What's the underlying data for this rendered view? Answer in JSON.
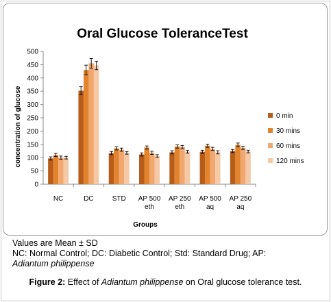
{
  "chart_data": {
    "type": "bar",
    "title": "Oral Glucose ToleranceTest",
    "xlabel": "Groups",
    "ylabel": "concentration of glucose",
    "ylim": [
      0,
      500
    ],
    "yticks": [
      "0",
      "50",
      "100",
      "150",
      "200",
      "250",
      "300",
      "350",
      "400",
      "450",
      "500"
    ],
    "categories": [
      [
        "NC"
      ],
      [
        "DC"
      ],
      [
        "STD"
      ],
      [
        "AP 500",
        "eth"
      ],
      [
        "AP 250",
        "eth"
      ],
      [
        "AP 500",
        "aq"
      ],
      [
        "AP 250",
        "aq"
      ]
    ],
    "series": [
      {
        "name": "0  min",
        "color": "#b85c1a",
        "values": [
          97,
          352,
          117,
          112,
          120,
          122,
          125
        ],
        "errors": [
          6,
          15,
          6,
          6,
          6,
          6,
          6
        ]
      },
      {
        "name": "30 mins",
        "color": "#e2842e",
        "values": [
          110,
          430,
          135,
          138,
          142,
          145,
          148
        ],
        "errors": [
          6,
          18,
          6,
          6,
          6,
          6,
          7
        ]
      },
      {
        "name": "60 mins",
        "color": "#f0a870",
        "values": [
          100,
          455,
          130,
          118,
          140,
          133,
          137
        ],
        "errors": [
          6,
          18,
          6,
          6,
          6,
          6,
          6
        ]
      },
      {
        "name": "120 mins",
        "color": "#f5c9a6",
        "values": [
          100,
          447,
          118,
          106,
          122,
          120,
          123
        ],
        "errors": [
          5,
          16,
          5,
          5,
          5,
          6,
          5
        ]
      }
    ],
    "legend": "right",
    "grid": false
  },
  "notes": {
    "mean_sd": "Values are Mean ±  SD",
    "abbrev": "NC: Normal Control; DC: Diabetic Control; Std: Standard Drug; AP:",
    "abbrev_species": "Adiantum philippense"
  },
  "caption": {
    "label": "Figure 2:",
    "pre": " Effect of ",
    "species": "Adiantum philippense",
    "post": " on Oral glucose tolerance test."
  }
}
